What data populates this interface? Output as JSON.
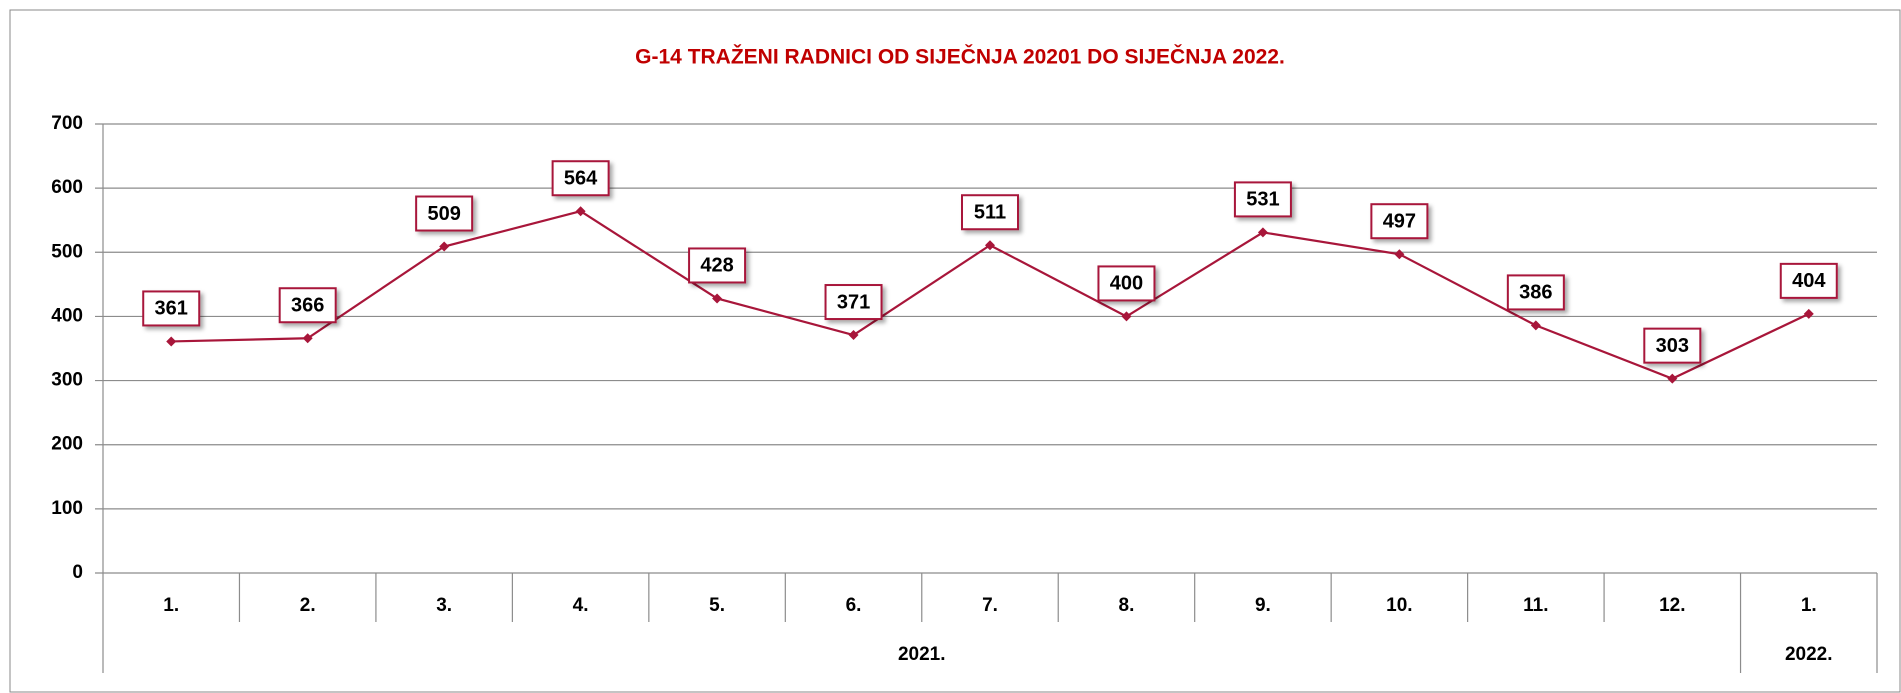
{
  "chart_data": {
    "type": "line",
    "title": "G-14 TRAŽENI RADNICI OD SIJEČNJA 20201 DO SIJEČNJA 2022.",
    "categories": [
      "1.",
      "2.",
      "3.",
      "4.",
      "5.",
      "6.",
      "7.",
      "8.",
      "9.",
      "10.",
      "11.",
      "12.",
      "1."
    ],
    "category_groups": [
      "2021.",
      "2021.",
      "2021.",
      "2021.",
      "2021.",
      "2021.",
      "2021.",
      "2021.",
      "2021.",
      "2021.",
      "2021.",
      "2021.",
      "2022."
    ],
    "series": [
      {
        "color": "#a8163a",
        "values": [
          361,
          366,
          509,
          564,
          428,
          371,
          511,
          400,
          531,
          497,
          386,
          303,
          404
        ]
      }
    ],
    "ylim": [
      0,
      700
    ],
    "yticks": [
      0,
      100,
      200,
      300,
      400,
      500,
      600,
      700
    ],
    "grid": true
  }
}
